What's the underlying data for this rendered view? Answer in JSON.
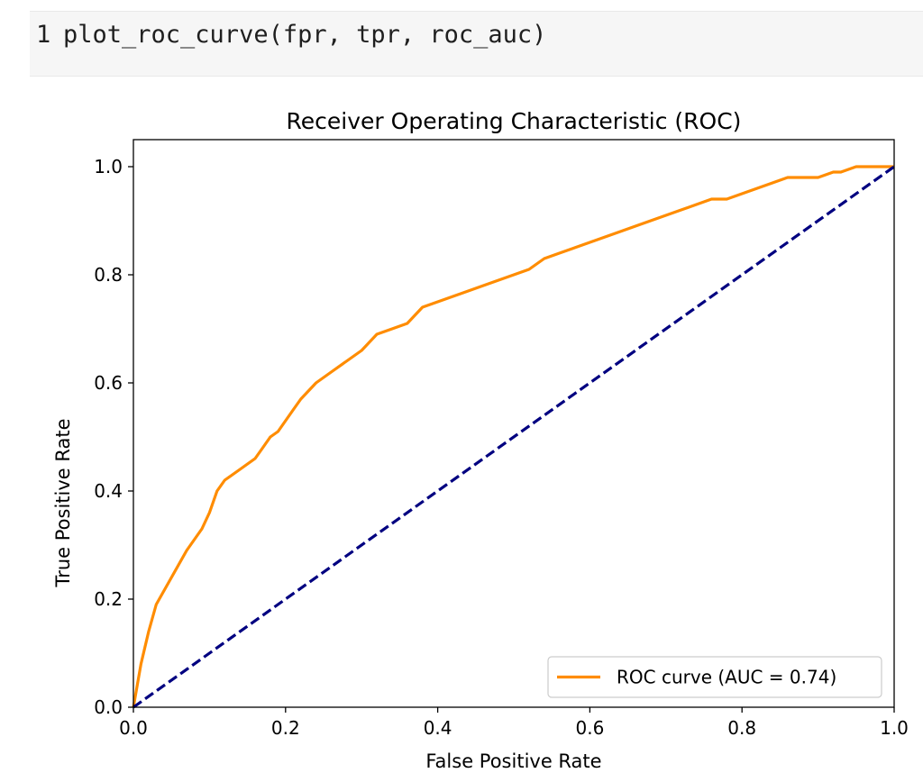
{
  "cell": {
    "line_number": "1",
    "code": "plot_roc_curve(fpr, tpr, roc_auc)"
  },
  "chart_data": {
    "type": "line",
    "title": "Receiver Operating Characteristic (ROC)",
    "xlabel": "False Positive Rate",
    "ylabel": "True Positive Rate",
    "xlim": [
      0.0,
      1.0
    ],
    "ylim": [
      0.0,
      1.05
    ],
    "xticks": [
      "0.0",
      "0.2",
      "0.4",
      "0.6",
      "0.8",
      "1.0"
    ],
    "yticks": [
      "0.0",
      "0.2",
      "0.4",
      "0.6",
      "0.8",
      "1.0"
    ],
    "grid": false,
    "legend_location": "lower right",
    "series": [
      {
        "name": "ROC curve (AUC = 0.74)",
        "color": "#ff8c00",
        "style": "solid",
        "x": [
          0.0,
          0.01,
          0.02,
          0.03,
          0.05,
          0.07,
          0.09,
          0.1,
          0.11,
          0.12,
          0.14,
          0.16,
          0.17,
          0.18,
          0.19,
          0.2,
          0.21,
          0.22,
          0.24,
          0.26,
          0.28,
          0.3,
          0.32,
          0.34,
          0.36,
          0.38,
          0.4,
          0.42,
          0.44,
          0.46,
          0.48,
          0.5,
          0.52,
          0.54,
          0.56,
          0.58,
          0.6,
          0.62,
          0.64,
          0.66,
          0.68,
          0.7,
          0.72,
          0.74,
          0.76,
          0.78,
          0.8,
          0.82,
          0.84,
          0.86,
          0.88,
          0.9,
          0.92,
          0.93,
          0.95,
          0.97,
          0.98,
          1.0
        ],
        "y": [
          0.0,
          0.08,
          0.14,
          0.19,
          0.24,
          0.29,
          0.33,
          0.36,
          0.4,
          0.42,
          0.44,
          0.46,
          0.48,
          0.5,
          0.51,
          0.53,
          0.55,
          0.57,
          0.6,
          0.62,
          0.64,
          0.66,
          0.69,
          0.7,
          0.71,
          0.74,
          0.75,
          0.76,
          0.77,
          0.78,
          0.79,
          0.8,
          0.81,
          0.83,
          0.84,
          0.85,
          0.86,
          0.87,
          0.88,
          0.89,
          0.9,
          0.91,
          0.92,
          0.93,
          0.94,
          0.94,
          0.95,
          0.96,
          0.97,
          0.98,
          0.98,
          0.98,
          0.99,
          0.99,
          1.0,
          1.0,
          1.0,
          1.0
        ]
      },
      {
        "name": "",
        "color": "#000080",
        "style": "dashed",
        "x": [
          0.0,
          1.0
        ],
        "y": [
          0.0,
          1.0
        ]
      }
    ]
  }
}
